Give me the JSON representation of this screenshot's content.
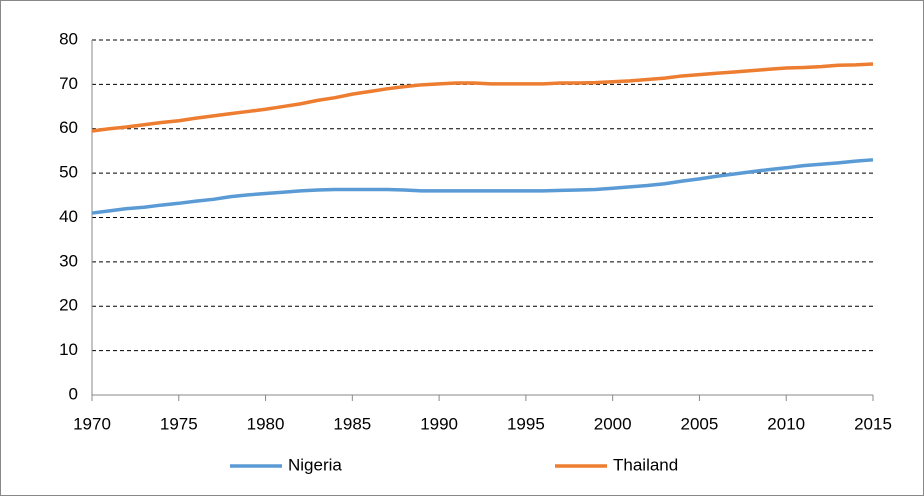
{
  "chart_data": {
    "type": "line",
    "x": [
      1970,
      1971,
      1972,
      1973,
      1974,
      1975,
      1976,
      1977,
      1978,
      1979,
      1980,
      1981,
      1982,
      1983,
      1984,
      1985,
      1986,
      1987,
      1988,
      1989,
      1990,
      1991,
      1992,
      1993,
      1994,
      1995,
      1996,
      1997,
      1998,
      1999,
      2000,
      2001,
      2002,
      2003,
      2004,
      2005,
      2006,
      2007,
      2008,
      2009,
      2010,
      2011,
      2012,
      2013,
      2014,
      2015
    ],
    "series": [
      {
        "name": "Nigeria",
        "color": "#5b9bd5",
        "values": [
          41.0,
          41.5,
          42.0,
          42.3,
          42.8,
          43.2,
          43.7,
          44.1,
          44.7,
          45.1,
          45.4,
          45.7,
          46.0,
          46.2,
          46.3,
          46.3,
          46.3,
          46.3,
          46.2,
          46.0,
          46.0,
          46.0,
          46.0,
          46.0,
          46.0,
          46.0,
          46.0,
          46.1,
          46.2,
          46.3,
          46.6,
          46.9,
          47.2,
          47.6,
          48.2,
          48.7,
          49.3,
          49.8,
          50.3,
          50.8,
          51.2,
          51.7,
          52.0,
          52.3,
          52.7,
          53.0
        ]
      },
      {
        "name": "Thailand",
        "color": "#ed7d31",
        "values": [
          59.5,
          60.0,
          60.4,
          60.9,
          61.4,
          61.8,
          62.4,
          62.9,
          63.4,
          63.9,
          64.4,
          65.0,
          65.6,
          66.4,
          67.0,
          67.8,
          68.4,
          69.0,
          69.5,
          69.9,
          70.1,
          70.3,
          70.3,
          70.1,
          70.1,
          70.1,
          70.1,
          70.3,
          70.3,
          70.4,
          70.6,
          70.8,
          71.1,
          71.4,
          71.9,
          72.2,
          72.5,
          72.8,
          73.1,
          73.4,
          73.7,
          73.8,
          74.0,
          74.3,
          74.4,
          74.6
        ]
      }
    ],
    "xlim": [
      1970,
      2015
    ],
    "xticks": [
      1970,
      1975,
      1980,
      1985,
      1990,
      1995,
      2000,
      2005,
      2010,
      2015
    ],
    "ylim": [
      0,
      80
    ],
    "yticks": [
      0,
      10,
      20,
      30,
      40,
      50,
      60,
      70,
      80
    ],
    "grid": true,
    "legend": "bottom"
  }
}
